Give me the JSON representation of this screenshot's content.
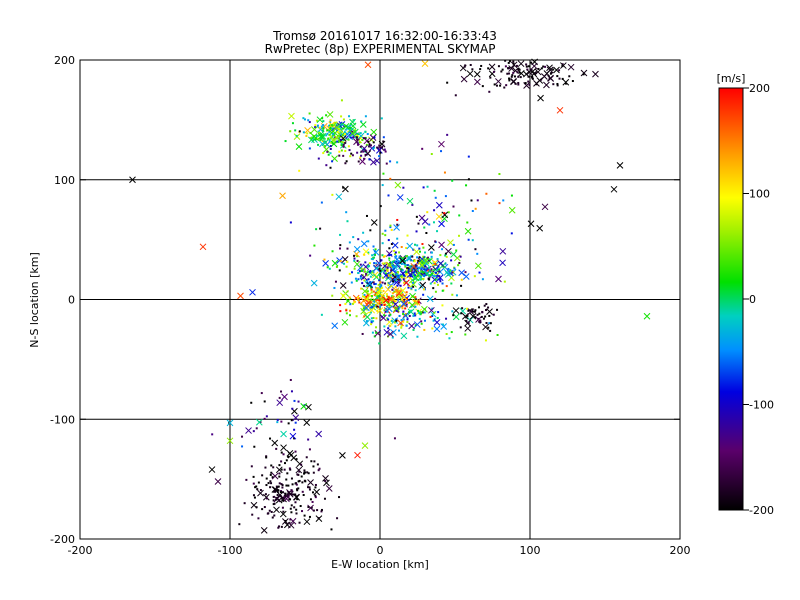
{
  "chart_data": {
    "type": "scatter",
    "title": "Tromsø 20161017 16:32:00-16:33:43",
    "subtitle": "RwPretec (8p) EXPERIMENTAL SKYMAP",
    "xlabel": "E-W location [km]",
    "ylabel": "N-S location [km]",
    "xlim": [
      -200,
      200
    ],
    "ylim": [
      -200,
      200
    ],
    "x_ticks": [
      "-200",
      "-100",
      "0",
      "100",
      "200"
    ],
    "y_ticks": [
      "-200",
      "-100",
      "0",
      "100",
      "200"
    ],
    "grid": true,
    "colorbar": {
      "label": "[m/s]",
      "range": [
        -200,
        200
      ],
      "ticks": [
        "200",
        "100",
        "0",
        "-100",
        "-200"
      ],
      "colormap": "rainbow (black → purple → blue → cyan → green → yellow → orange → red)"
    },
    "markers": [
      "dot",
      "cross"
    ],
    "clusters": [
      {
        "center": [
          -30,
          138
        ],
        "spread": [
          18,
          10
        ],
        "count": 220,
        "mean_velocity": 20,
        "velocity_spread": 55
      },
      {
        "center": [
          -10,
          125
        ],
        "spread": [
          15,
          10
        ],
        "count": 70,
        "mean_velocity": -150,
        "velocity_spread": 40
      },
      {
        "center": [
          15,
          25
        ],
        "spread": [
          28,
          14
        ],
        "count": 500,
        "mean_velocity": -30,
        "velocity_spread": 90
      },
      {
        "center": [
          0,
          0
        ],
        "spread": [
          18,
          7
        ],
        "count": 160,
        "mean_velocity": 110,
        "velocity_spread": 70
      },
      {
        "center": [
          15,
          -15
        ],
        "spread": [
          25,
          12
        ],
        "count": 160,
        "mean_velocity": -10,
        "velocity_spread": 80
      },
      {
        "center": [
          65,
          -15
        ],
        "spread": [
          10,
          8
        ],
        "count": 50,
        "mean_velocity": -190,
        "velocity_spread": 15
      },
      {
        "center": [
          95,
          190
        ],
        "spread": [
          28,
          10
        ],
        "count": 140,
        "mean_velocity": -190,
        "velocity_spread": 15
      },
      {
        "center": [
          -60,
          -160
        ],
        "spread": [
          20,
          20
        ],
        "count": 210,
        "mean_velocity": -190,
        "velocity_spread": 15
      },
      {
        "center": [
          -65,
          -100
        ],
        "spread": [
          25,
          25
        ],
        "count": 50,
        "mean_velocity": -150,
        "velocity_spread": 60
      },
      {
        "center": [
          20,
          60
        ],
        "spread": [
          50,
          50
        ],
        "count": 140,
        "mean_velocity": -60,
        "velocity_spread": 110
      }
    ],
    "isolated_points": [
      [
        -118,
        44,
        180
      ],
      [
        -93,
        3,
        170
      ],
      [
        -108,
        -152,
        -160
      ],
      [
        120,
        158,
        180
      ],
      [
        -15,
        -130,
        190
      ],
      [
        178,
        -14,
        20
      ],
      [
        -10,
        -122,
        60
      ],
      [
        -100,
        -103,
        -30
      ],
      [
        -100,
        -118,
        60
      ],
      [
        -85,
        6,
        -80
      ],
      [
        -8,
        196,
        170
      ],
      [
        30,
        197,
        120
      ],
      [
        -165,
        100,
        -200
      ],
      [
        160,
        112,
        -200
      ],
      [
        156,
        92,
        -200
      ],
      [
        -112,
        -142,
        -200
      ]
    ]
  }
}
